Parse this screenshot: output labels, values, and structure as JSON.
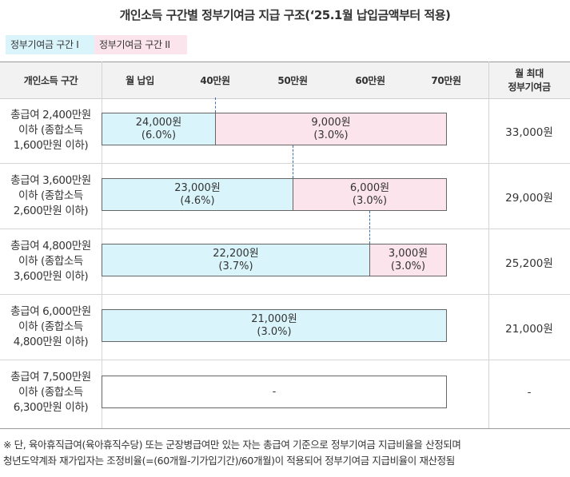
{
  "title": "개인소득 구간별 정부기여금 지급 구조(‘25.1월 납입금액부터 적용)",
  "legend": {
    "tier1": "정부기여금 구간 I",
    "tier2": "정부기여금 구간 II"
  },
  "colors": {
    "tier1": "#d9f5fb",
    "tier2": "#fbe4ec",
    "dash": "#3a6fb5"
  },
  "header": {
    "income": "개인소득 구간",
    "monthly": "월 납입",
    "ticks": [
      "40만원",
      "50만원",
      "60만원",
      "70만원"
    ],
    "max_line1": "월 최대",
    "max_line2": "정부기여금"
  },
  "rows": [
    {
      "label_l1": "총급여 2,400만원",
      "label_l2": "이하 (종합소득",
      "label_l3": "1,600만원 이하)",
      "tier1_amount": "24,000원",
      "tier1_rate": "(6.0%)",
      "tier2_amount": "9,000원",
      "tier2_rate": "(3.0%)",
      "max": "33,000원",
      "tier1_upto_won": 400000,
      "tier2_upto_won": 700000
    },
    {
      "label_l1": "총급여 3,600만원",
      "label_l2": "이하 (종합소득",
      "label_l3": "2,600만원 이하)",
      "tier1_amount": "23,000원",
      "tier1_rate": "(4.6%)",
      "tier2_amount": "6,000원",
      "tier2_rate": "(3.0%)",
      "max": "29,000원",
      "tier1_upto_won": 500000,
      "tier2_upto_won": 700000
    },
    {
      "label_l1": "총급여 4,800만원",
      "label_l2": "이하 (종합소득",
      "label_l3": "3,600만원 이하)",
      "tier1_amount": "22,200원",
      "tier1_rate": "(3.7%)",
      "tier2_amount": "3,000원",
      "tier2_rate": "(3.0%)",
      "max": "25,200원",
      "tier1_upto_won": 600000,
      "tier2_upto_won": 700000
    },
    {
      "label_l1": "총급여 6,000만원",
      "label_l2": "이하 (종합소득",
      "label_l3": "4,800만원 이하)",
      "tier1_amount": "21,000원",
      "tier1_rate": "(3.0%)",
      "max": "21,000원",
      "tier1_upto_won": 700000
    },
    {
      "label_l1": "총급여 7,500만원",
      "label_l2": "이하 (종합소득",
      "label_l3": "6,300만원 이하)",
      "none_text": "-",
      "max": "-"
    }
  ],
  "footer": {
    "line1": "※ 단, 육아휴직급여(육아휴직수당) 또는 군장병급여만 있는 자는 총급여 기준으로 정부기여금 지급비율을 산정되며",
    "line2": "청년도약계좌 재가입자는 조정비율(=(60개월-기가입기간)/60개월)이 적용되어 정부기여금 지급비율이 재산정됨"
  }
}
